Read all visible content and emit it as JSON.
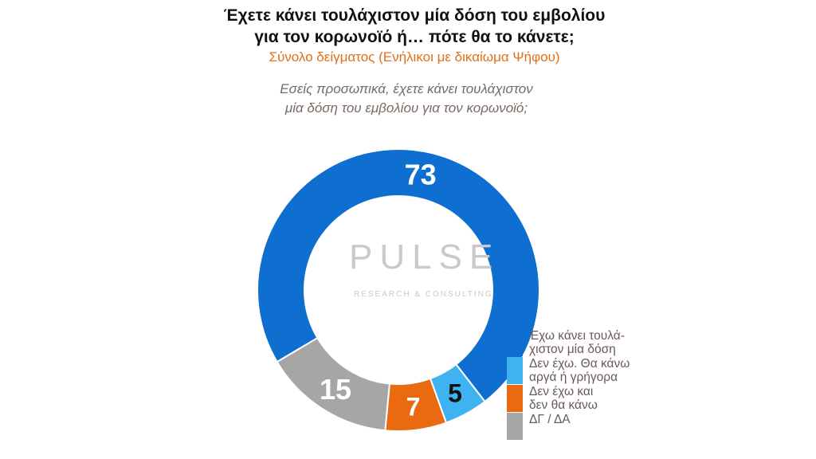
{
  "header": {
    "title_line1": "Έχετε κάνει τουλάχιστον μία δόση του εμβολίου",
    "title_line2": "για τον κορωνοϊό ή… πότε θα το κάνετε;",
    "subtitle": "Σύνολο δείγματος (Ενήλικοι με δικαίωμα Ψήφου)",
    "question_line1": "Εσείς προσωπικά, έχετε κάνει τουλάχιστον",
    "question_line2": "μία δόση του εμβολίου για τον κορωνοϊό;"
  },
  "watermark": {
    "name": "PULSE",
    "sub": "RESEARCH & CONSULTING"
  },
  "chart_data": {
    "type": "pie",
    "subtype": "donut",
    "categories": [
      "Έχω κάνει τουλά-\nχιστον μία δόση",
      "Δεν έχω. Θα κάνω\nαργά ή γρήγορα",
      "Δεν έχω και\nδεν θα κάνω",
      "ΔΓ / ΔΑ"
    ],
    "values": [
      73,
      5,
      7,
      15
    ],
    "colors": [
      "#0e6fd1",
      "#3fb3f2",
      "#ea6a12",
      "#a6a6a6"
    ],
    "value_label_colors": [
      "#ffffff",
      "#111111",
      "#ffffff",
      "#ffffff"
    ],
    "legend_position": "bottom-right"
  }
}
